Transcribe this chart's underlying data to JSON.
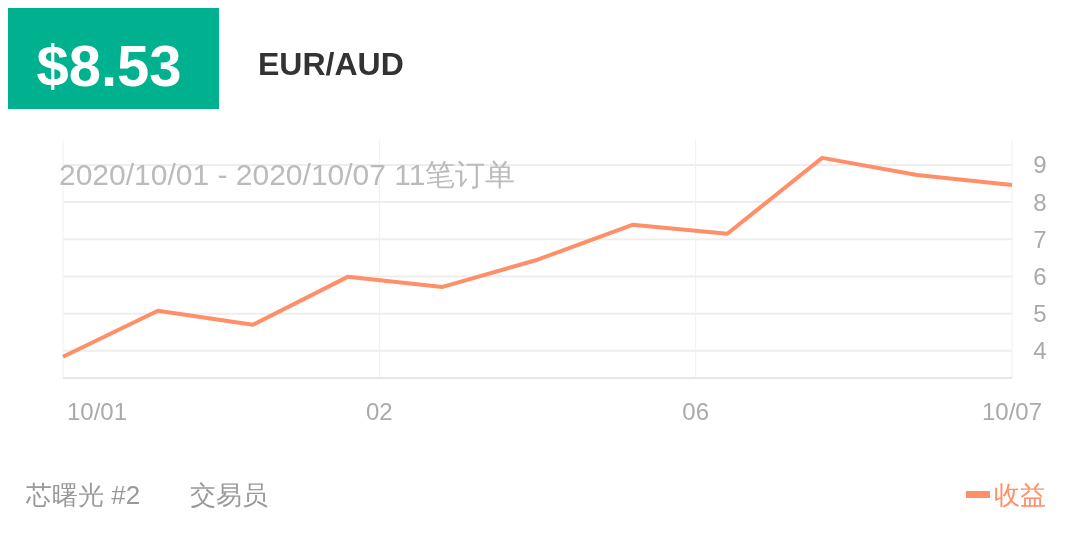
{
  "chart_data": {
    "type": "line",
    "title": "EUR/AUD",
    "annotations": [
      "$8.53",
      "2020/10/01 - 2020/10/07  11笔订单",
      "芯曙光 #2",
      "交易员",
      "10/01",
      "02",
      "06",
      "10/07"
    ],
    "categories": [
      null,
      null,
      null,
      null,
      null,
      null,
      null,
      null,
      null,
      null,
      null
    ],
    "series": [
      {
        "name": "收益",
        "color": "#fe8f68",
        "values": [
          3.84,
          5.08,
          4.7,
          5.99,
          5.72,
          6.45,
          7.39,
          7.15,
          9.19,
          8.73,
          8.46
        ]
      }
    ],
    "ylim": [
      3.27,
      9.67
    ],
    "yticks": [
      4,
      5,
      6,
      7,
      8,
      9
    ],
    "grid": true,
    "legend": "bottom right",
    "marker": "none",
    "line_style": "solid"
  }
}
